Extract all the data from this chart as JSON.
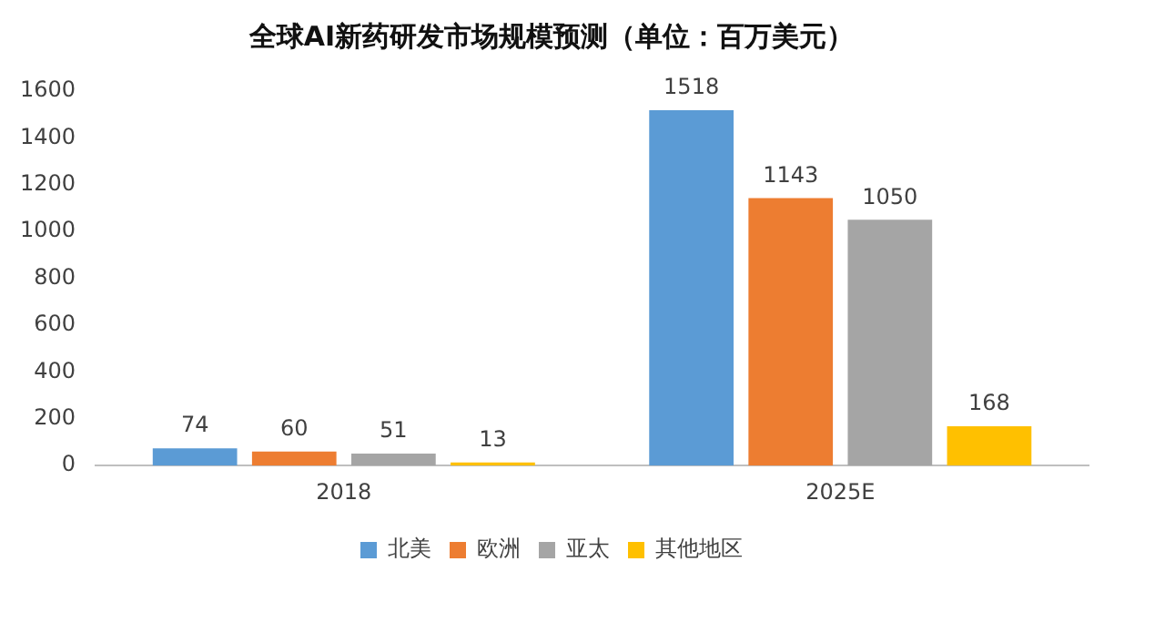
{
  "chart_data": {
    "type": "bar",
    "title": "全球AI新药研发市场规模预测（单位：百万美元）",
    "categories": [
      "2018",
      "2025E"
    ],
    "series": [
      {
        "name": "北美",
        "color": "#5b9bd5",
        "values": [
          74,
          1518
        ]
      },
      {
        "name": "欧洲",
        "color": "#ed7d31",
        "values": [
          60,
          1143
        ]
      },
      {
        "name": "亚太",
        "color": "#a5a5a5",
        "values": [
          51,
          1050
        ]
      },
      {
        "name": "其他地区",
        "color": "#ffc000",
        "values": [
          13,
          168
        ]
      }
    ],
    "ylim": [
      0,
      1600
    ],
    "yticks": [
      0,
      200,
      400,
      600,
      800,
      1000,
      1200,
      1400,
      1600
    ],
    "grid": false,
    "legend": "bottom",
    "data_labels": true
  }
}
